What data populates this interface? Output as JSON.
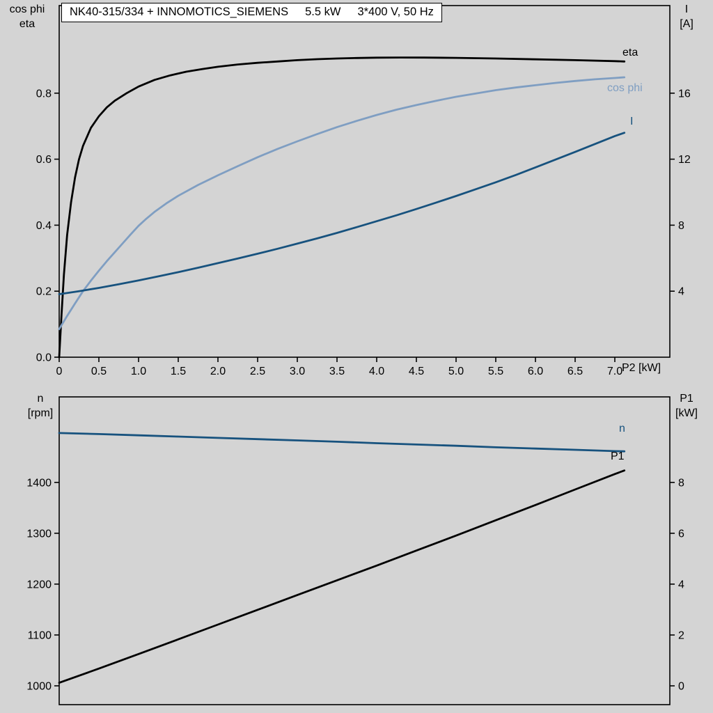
{
  "title": {
    "model": "NK40-315/334 + INNOMOTICS_SIEMENS",
    "power": "5.5 kW",
    "supply": "3*400 V, 50 Hz"
  },
  "colors": {
    "black": "#000000",
    "dark_blue": "#17527e",
    "light_blue": "#7f9ec2",
    "background": "#d4d4d4",
    "title_box_bg": "#ffffff"
  },
  "axis_corner_labels": {
    "top_left_line1": "cos phi",
    "top_left_line2": "eta",
    "top_right_line1": "I",
    "top_right_line2": "[A]",
    "bottom_left_line1": "n",
    "bottom_left_line2": "[rpm]",
    "bottom_right_line1": "P1",
    "bottom_right_line2": "[kW]"
  },
  "chart_data": [
    {
      "type": "line",
      "panel": "top",
      "xlabel": "P2 [kW]",
      "xlim": [
        0,
        7.693
      ],
      "x_ticks": [
        0,
        0.5,
        1.0,
        1.5,
        2.0,
        2.5,
        3.0,
        3.5,
        4.0,
        4.5,
        5.0,
        5.5,
        6.0,
        6.5,
        7.0
      ],
      "x_tick_labels": [
        "0",
        "0.5",
        "1.0",
        "1.5",
        "2.0",
        "2.5",
        "3.0",
        "3.5",
        "4.0",
        "4.5",
        "5.0",
        "5.5",
        "6.0",
        "6.5",
        "7.0"
      ],
      "left_axis": {
        "label": "cos phi / eta",
        "lim": [
          0,
          1.0654
        ],
        "ticks": [
          0,
          0.2,
          0.4,
          0.6,
          0.8
        ],
        "tick_labels": [
          "0.0",
          "0.2",
          "0.4",
          "0.6",
          "0.8"
        ]
      },
      "right_axis": {
        "label": "I [A]",
        "lim": [
          0,
          21.308
        ],
        "ticks": [
          4,
          8,
          12,
          16
        ],
        "tick_labels": [
          "4",
          "8",
          "12",
          "16"
        ]
      },
      "grid": false,
      "series": [
        {
          "name": "eta",
          "axis": "left",
          "color_key": "black",
          "points": [
            [
              0,
              0
            ],
            [
              0.03,
              0.13
            ],
            [
              0.06,
              0.25
            ],
            [
              0.1,
              0.37
            ],
            [
              0.15,
              0.47
            ],
            [
              0.2,
              0.545
            ],
            [
              0.25,
              0.6
            ],
            [
              0.3,
              0.64
            ],
            [
              0.4,
              0.695
            ],
            [
              0.5,
              0.73
            ],
            [
              0.6,
              0.757
            ],
            [
              0.7,
              0.777
            ],
            [
              0.85,
              0.8
            ],
            [
              1.0,
              0.82
            ],
            [
              1.2,
              0.84
            ],
            [
              1.4,
              0.854
            ],
            [
              1.6,
              0.865
            ],
            [
              1.8,
              0.873
            ],
            [
              2.0,
              0.88
            ],
            [
              2.25,
              0.887
            ],
            [
              2.5,
              0.892
            ],
            [
              2.75,
              0.896
            ],
            [
              3.0,
              0.9
            ],
            [
              3.25,
              0.903
            ],
            [
              3.5,
              0.905
            ],
            [
              3.75,
              0.9065
            ],
            [
              4.0,
              0.9075
            ],
            [
              4.3,
              0.908
            ],
            [
              4.6,
              0.9078
            ],
            [
              5.0,
              0.907
            ],
            [
              5.5,
              0.905
            ],
            [
              6.0,
              0.9025
            ],
            [
              6.5,
              0.9
            ],
            [
              7.0,
              0.897
            ],
            [
              7.12,
              0.896
            ]
          ]
        },
        {
          "name": "cos phi",
          "axis": "left",
          "color_key": "light_blue",
          "points": [
            [
              0,
              0.085
            ],
            [
              0.1,
              0.125
            ],
            [
              0.2,
              0.163
            ],
            [
              0.3,
              0.2
            ],
            [
              0.4,
              0.232
            ],
            [
              0.5,
              0.262
            ],
            [
              0.6,
              0.291
            ],
            [
              0.7,
              0.318
            ],
            [
              0.8,
              0.345
            ],
            [
              0.9,
              0.372
            ],
            [
              1.0,
              0.398
            ],
            [
              1.1,
              0.42
            ],
            [
              1.2,
              0.44
            ],
            [
              1.35,
              0.466
            ],
            [
              1.5,
              0.489
            ],
            [
              1.75,
              0.522
            ],
            [
              2.0,
              0.551
            ],
            [
              2.25,
              0.579
            ],
            [
              2.5,
              0.606
            ],
            [
              2.75,
              0.631
            ],
            [
              3.0,
              0.654
            ],
            [
              3.25,
              0.676
            ],
            [
              3.5,
              0.697
            ],
            [
              3.75,
              0.716
            ],
            [
              4.0,
              0.734
            ],
            [
              4.25,
              0.75
            ],
            [
              4.5,
              0.764
            ],
            [
              4.75,
              0.777
            ],
            [
              5.0,
              0.789
            ],
            [
              5.25,
              0.799
            ],
            [
              5.5,
              0.809
            ],
            [
              5.75,
              0.817
            ],
            [
              6.0,
              0.824
            ],
            [
              6.25,
              0.831
            ],
            [
              6.5,
              0.837
            ],
            [
              6.75,
              0.842
            ],
            [
              7.0,
              0.846
            ],
            [
              7.12,
              0.848
            ]
          ]
        },
        {
          "name": "I",
          "axis": "right",
          "color_key": "dark_blue",
          "points": [
            [
              0,
              3.82
            ],
            [
              0.25,
              4.0
            ],
            [
              0.5,
              4.2
            ],
            [
              0.75,
              4.42
            ],
            [
              1.0,
              4.65
            ],
            [
              1.25,
              4.9
            ],
            [
              1.5,
              5.15
            ],
            [
              1.75,
              5.42
            ],
            [
              2.0,
              5.7
            ],
            [
              2.25,
              5.98
            ],
            [
              2.5,
              6.27
            ],
            [
              2.75,
              6.57
            ],
            [
              3.0,
              6.88
            ],
            [
              3.25,
              7.2
            ],
            [
              3.5,
              7.53
            ],
            [
              3.75,
              7.88
            ],
            [
              4.0,
              8.24
            ],
            [
              4.25,
              8.6
            ],
            [
              4.5,
              8.98
            ],
            [
              4.75,
              9.37
            ],
            [
              5.0,
              9.77
            ],
            [
              5.25,
              10.18
            ],
            [
              5.5,
              10.6
            ],
            [
              5.75,
              11.04
            ],
            [
              6.0,
              11.5
            ],
            [
              6.25,
              11.97
            ],
            [
              6.5,
              12.44
            ],
            [
              6.75,
              12.92
            ],
            [
              7.0,
              13.4
            ],
            [
              7.12,
              13.6
            ]
          ]
        }
      ]
    },
    {
      "type": "line",
      "panel": "bottom",
      "xlabel": "",
      "xlim": [
        0,
        7.693
      ],
      "x_ticks": [],
      "x_tick_labels": [],
      "left_axis": {
        "label": "n [rpm]",
        "lim": [
          963.0,
          1568.1
        ],
        "ticks": [
          1000,
          1100,
          1200,
          1300,
          1400
        ],
        "tick_labels": [
          "1000",
          "1100",
          "1200",
          "1300",
          "1400"
        ]
      },
      "right_axis": {
        "label": "P1 [kW]",
        "lim": [
          -0.7393,
          11.363
        ],
        "ticks": [
          0,
          2,
          4,
          6,
          8
        ],
        "tick_labels": [
          "0",
          "2",
          "4",
          "6",
          "8"
        ]
      },
      "grid": false,
      "series": [
        {
          "name": "n",
          "axis": "left",
          "color_key": "dark_blue",
          "points": [
            [
              0,
              1497
            ],
            [
              0.5,
              1495
            ],
            [
              1.0,
              1492.5
            ],
            [
              1.5,
              1490
            ],
            [
              2.0,
              1487.5
            ],
            [
              2.5,
              1485
            ],
            [
              3.0,
              1482.5
            ],
            [
              3.5,
              1480
            ],
            [
              4.0,
              1477
            ],
            [
              4.5,
              1474.5
            ],
            [
              5.0,
              1472
            ],
            [
              5.5,
              1469
            ],
            [
              6.0,
              1466.5
            ],
            [
              6.5,
              1464
            ],
            [
              7.0,
              1461.5
            ],
            [
              7.12,
              1461
            ]
          ]
        },
        {
          "name": "P1",
          "axis": "right",
          "color_key": "black",
          "points": [
            [
              0,
              0.12
            ],
            [
              0.5,
              0.68
            ],
            [
              1.0,
              1.25
            ],
            [
              1.5,
              1.83
            ],
            [
              2.0,
              2.41
            ],
            [
              2.5,
              2.99
            ],
            [
              3.0,
              3.57
            ],
            [
              3.5,
              4.15
            ],
            [
              4.0,
              4.73
            ],
            [
              4.5,
              5.32
            ],
            [
              5.0,
              5.91
            ],
            [
              5.5,
              6.51
            ],
            [
              6.0,
              7.11
            ],
            [
              6.5,
              7.72
            ],
            [
              7.0,
              8.33
            ],
            [
              7.12,
              8.47
            ]
          ]
        }
      ]
    }
  ]
}
